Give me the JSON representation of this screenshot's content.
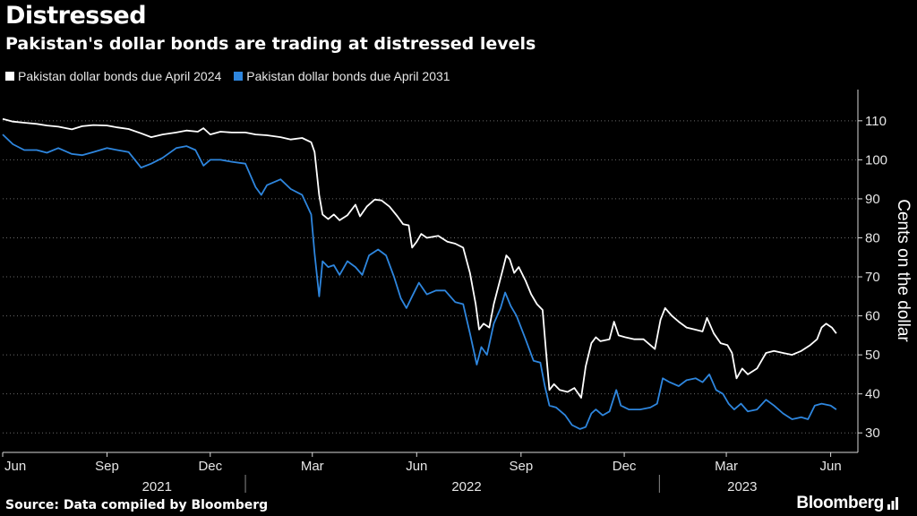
{
  "header": {
    "title": "Distressed",
    "subtitle": "Pakistan's dollar bonds are trading at distressed levels"
  },
  "legend": [
    {
      "label": "Pakistan dollar bonds due April 2024",
      "color": "#ffffff"
    },
    {
      "label": "Pakistan dollar bonds due April 2031",
      "color": "#2e86de"
    }
  ],
  "footer": {
    "source": "Source: Data compiled by Bloomberg",
    "brand": "Bloomberg"
  },
  "chart_data": {
    "type": "line",
    "title": "Distressed",
    "subtitle": "Pakistan's dollar bonds are trading at distressed levels",
    "xlabel": "",
    "ylabel": "Cents on the dollar",
    "ylim": [
      25,
      118
    ],
    "yticks": [
      30,
      40,
      50,
      60,
      70,
      80,
      90,
      100,
      110
    ],
    "grid": "horizontal-dotted",
    "legend_position": "top-left",
    "x_range": [
      "2021-06-01",
      "2023-06-25"
    ],
    "x_month_ticks": [
      {
        "date": "2021-06-01",
        "label": "Jun"
      },
      {
        "date": "2021-09-01",
        "label": "Sep"
      },
      {
        "date": "2021-12-01",
        "label": "Dec"
      },
      {
        "date": "2022-03-01",
        "label": "Mar"
      },
      {
        "date": "2022-06-01",
        "label": "Jun"
      },
      {
        "date": "2022-09-01",
        "label": "Sep"
      },
      {
        "date": "2022-12-01",
        "label": "Dec"
      },
      {
        "date": "2023-03-01",
        "label": "Mar"
      },
      {
        "date": "2023-06-01",
        "label": "Jun"
      }
    ],
    "x_year_labels": [
      {
        "date": "2021-10-15",
        "label": "2021"
      },
      {
        "date": "2022-07-15",
        "label": "2022"
      },
      {
        "date": "2023-03-15",
        "label": "2023"
      }
    ],
    "x_year_dividers": [
      "2022-01-01",
      "2023-01-01"
    ],
    "series": [
      {
        "name": "Pakistan dollar bonds due April 2024",
        "color": "#ffffff",
        "points": [
          [
            "2021-06-01",
            110.5
          ],
          [
            "2021-06-10",
            109.8
          ],
          [
            "2021-06-20",
            109.5
          ],
          [
            "2021-07-01",
            109.2
          ],
          [
            "2021-07-10",
            108.8
          ],
          [
            "2021-07-20",
            108.5
          ],
          [
            "2021-08-01",
            107.8
          ],
          [
            "2021-08-10",
            108.6
          ],
          [
            "2021-08-20",
            108.9
          ],
          [
            "2021-09-01",
            108.8
          ],
          [
            "2021-09-10",
            108.3
          ],
          [
            "2021-09-20",
            107.9
          ],
          [
            "2021-10-01",
            106.8
          ],
          [
            "2021-10-10",
            105.8
          ],
          [
            "2021-10-20",
            106.5
          ],
          [
            "2021-11-01",
            107.0
          ],
          [
            "2021-11-10",
            107.5
          ],
          [
            "2021-11-20",
            107.2
          ],
          [
            "2021-11-25",
            108.1
          ],
          [
            "2021-12-01",
            106.5
          ],
          [
            "2021-12-10",
            107.2
          ],
          [
            "2021-12-20",
            107.0
          ],
          [
            "2022-01-01",
            107.0
          ],
          [
            "2022-01-10",
            106.5
          ],
          [
            "2022-01-20",
            106.3
          ],
          [
            "2022-02-01",
            105.8
          ],
          [
            "2022-02-10",
            105.2
          ],
          [
            "2022-02-20",
            105.6
          ],
          [
            "2022-02-28",
            104.5
          ],
          [
            "2022-03-03",
            102.0
          ],
          [
            "2022-03-07",
            91.0
          ],
          [
            "2022-03-10",
            86.0
          ],
          [
            "2022-03-15",
            84.8
          ],
          [
            "2022-03-20",
            86.0
          ],
          [
            "2022-03-25",
            84.5
          ],
          [
            "2022-04-01",
            85.8
          ],
          [
            "2022-04-08",
            88.5
          ],
          [
            "2022-04-12",
            85.5
          ],
          [
            "2022-04-18",
            88.0
          ],
          [
            "2022-04-25",
            89.8
          ],
          [
            "2022-05-01",
            89.6
          ],
          [
            "2022-05-08",
            88.0
          ],
          [
            "2022-05-15",
            85.5
          ],
          [
            "2022-05-20",
            83.5
          ],
          [
            "2022-05-25",
            83.2
          ],
          [
            "2022-05-28",
            77.5
          ],
          [
            "2022-06-01",
            79.0
          ],
          [
            "2022-06-05",
            81.0
          ],
          [
            "2022-06-10",
            80.0
          ],
          [
            "2022-06-20",
            80.5
          ],
          [
            "2022-06-28",
            79.0
          ],
          [
            "2022-07-05",
            78.5
          ],
          [
            "2022-07-12",
            77.5
          ],
          [
            "2022-07-18",
            71.0
          ],
          [
            "2022-07-23",
            63.0
          ],
          [
            "2022-07-26",
            56.5
          ],
          [
            "2022-07-30",
            58.0
          ],
          [
            "2022-08-04",
            57.0
          ],
          [
            "2022-08-08",
            63.0
          ],
          [
            "2022-08-12",
            67.5
          ],
          [
            "2022-08-16",
            72.0
          ],
          [
            "2022-08-19",
            75.5
          ],
          [
            "2022-08-22",
            74.5
          ],
          [
            "2022-08-26",
            71.0
          ],
          [
            "2022-08-30",
            72.5
          ],
          [
            "2022-09-05",
            69.0
          ],
          [
            "2022-09-10",
            65.5
          ],
          [
            "2022-09-15",
            63.0
          ],
          [
            "2022-09-20",
            61.5
          ],
          [
            "2022-09-23",
            51.0
          ],
          [
            "2022-09-26",
            41.0
          ],
          [
            "2022-09-30",
            42.5
          ],
          [
            "2022-10-05",
            41.0
          ],
          [
            "2022-10-12",
            40.5
          ],
          [
            "2022-10-18",
            41.5
          ],
          [
            "2022-10-24",
            39.0
          ],
          [
            "2022-10-28",
            47.0
          ],
          [
            "2022-11-02",
            53.0
          ],
          [
            "2022-11-06",
            54.5
          ],
          [
            "2022-11-10",
            53.5
          ],
          [
            "2022-11-18",
            54.0
          ],
          [
            "2022-11-22",
            58.5
          ],
          [
            "2022-11-26",
            55.0
          ],
          [
            "2022-12-02",
            54.5
          ],
          [
            "2022-12-10",
            54.0
          ],
          [
            "2022-12-18",
            54.0
          ],
          [
            "2022-12-24",
            52.5
          ],
          [
            "2022-12-28",
            51.5
          ],
          [
            "2023-01-02",
            59.0
          ],
          [
            "2023-01-06",
            62.0
          ],
          [
            "2023-01-12",
            60.0
          ],
          [
            "2023-01-18",
            58.5
          ],
          [
            "2023-01-25",
            57.0
          ],
          [
            "2023-02-01",
            56.5
          ],
          [
            "2023-02-08",
            56.0
          ],
          [
            "2023-02-12",
            59.5
          ],
          [
            "2023-02-18",
            55.5
          ],
          [
            "2023-02-24",
            53.0
          ],
          [
            "2023-03-02",
            52.5
          ],
          [
            "2023-03-06",
            50.5
          ],
          [
            "2023-03-10",
            44.0
          ],
          [
            "2023-03-15",
            46.5
          ],
          [
            "2023-03-20",
            45.0
          ],
          [
            "2023-03-28",
            46.5
          ],
          [
            "2023-04-05",
            50.5
          ],
          [
            "2023-04-12",
            51.0
          ],
          [
            "2023-04-20",
            50.5
          ],
          [
            "2023-04-28",
            50.0
          ],
          [
            "2023-05-06",
            51.0
          ],
          [
            "2023-05-14",
            52.5
          ],
          [
            "2023-05-20",
            54.0
          ],
          [
            "2023-05-24",
            57.0
          ],
          [
            "2023-05-28",
            58.0
          ],
          [
            "2023-06-02",
            57.0
          ],
          [
            "2023-06-06",
            55.5
          ]
        ]
      },
      {
        "name": "Pakistan dollar bonds due April 2031",
        "color": "#2e86de",
        "points": [
          [
            "2021-06-01",
            106.5
          ],
          [
            "2021-06-10",
            104.0
          ],
          [
            "2021-06-20",
            102.5
          ],
          [
            "2021-07-01",
            102.5
          ],
          [
            "2021-07-10",
            101.8
          ],
          [
            "2021-07-20",
            103.0
          ],
          [
            "2021-08-01",
            101.5
          ],
          [
            "2021-08-10",
            101.2
          ],
          [
            "2021-08-20",
            102.0
          ],
          [
            "2021-09-01",
            103.0
          ],
          [
            "2021-09-10",
            102.5
          ],
          [
            "2021-09-20",
            102.0
          ],
          [
            "2021-10-01",
            98.0
          ],
          [
            "2021-10-10",
            99.0
          ],
          [
            "2021-10-20",
            100.5
          ],
          [
            "2021-11-01",
            103.0
          ],
          [
            "2021-11-10",
            103.5
          ],
          [
            "2021-11-18",
            102.5
          ],
          [
            "2021-11-25",
            98.5
          ],
          [
            "2021-12-01",
            100.0
          ],
          [
            "2021-12-10",
            100.0
          ],
          [
            "2021-12-20",
            99.5
          ],
          [
            "2022-01-01",
            99.0
          ],
          [
            "2022-01-10",
            93.0
          ],
          [
            "2022-01-15",
            91.0
          ],
          [
            "2022-01-20",
            93.5
          ],
          [
            "2022-02-01",
            95.0
          ],
          [
            "2022-02-10",
            92.5
          ],
          [
            "2022-02-20",
            91.0
          ],
          [
            "2022-02-28",
            86.0
          ],
          [
            "2022-03-03",
            76.0
          ],
          [
            "2022-03-07",
            65.0
          ],
          [
            "2022-03-10",
            74.0
          ],
          [
            "2022-03-15",
            72.5
          ],
          [
            "2022-03-20",
            73.0
          ],
          [
            "2022-03-25",
            70.5
          ],
          [
            "2022-04-01",
            74.0
          ],
          [
            "2022-04-08",
            72.5
          ],
          [
            "2022-04-14",
            70.5
          ],
          [
            "2022-04-20",
            75.5
          ],
          [
            "2022-04-28",
            77.0
          ],
          [
            "2022-05-05",
            75.5
          ],
          [
            "2022-05-12",
            70.0
          ],
          [
            "2022-05-18",
            64.5
          ],
          [
            "2022-05-23",
            62.0
          ],
          [
            "2022-05-28",
            65.0
          ],
          [
            "2022-06-03",
            68.5
          ],
          [
            "2022-06-10",
            65.5
          ],
          [
            "2022-06-18",
            66.5
          ],
          [
            "2022-06-26",
            66.5
          ],
          [
            "2022-07-05",
            63.5
          ],
          [
            "2022-07-12",
            63.0
          ],
          [
            "2022-07-18",
            55.5
          ],
          [
            "2022-07-24",
            47.5
          ],
          [
            "2022-07-28",
            52.0
          ],
          [
            "2022-08-02",
            50.0
          ],
          [
            "2022-08-08",
            58.0
          ],
          [
            "2022-08-14",
            62.0
          ],
          [
            "2022-08-18",
            66.0
          ],
          [
            "2022-08-23",
            62.5
          ],
          [
            "2022-08-28",
            60.0
          ],
          [
            "2022-09-05",
            54.0
          ],
          [
            "2022-09-12",
            48.5
          ],
          [
            "2022-09-18",
            48.0
          ],
          [
            "2022-09-22",
            42.0
          ],
          [
            "2022-09-26",
            37.0
          ],
          [
            "2022-10-02",
            36.5
          ],
          [
            "2022-10-10",
            34.5
          ],
          [
            "2022-10-16",
            32.0
          ],
          [
            "2022-10-23",
            31.0
          ],
          [
            "2022-10-28",
            31.5
          ],
          [
            "2022-11-02",
            35.0
          ],
          [
            "2022-11-06",
            36.0
          ],
          [
            "2022-11-12",
            34.5
          ],
          [
            "2022-11-18",
            35.5
          ],
          [
            "2022-11-24",
            41.0
          ],
          [
            "2022-11-28",
            37.0
          ],
          [
            "2022-12-05",
            36.0
          ],
          [
            "2022-12-15",
            36.0
          ],
          [
            "2022-12-24",
            36.5
          ],
          [
            "2022-12-30",
            37.5
          ],
          [
            "2023-01-04",
            44.0
          ],
          [
            "2023-01-10",
            43.0
          ],
          [
            "2023-01-18",
            42.0
          ],
          [
            "2023-01-25",
            43.5
          ],
          [
            "2023-02-02",
            44.0
          ],
          [
            "2023-02-08",
            43.0
          ],
          [
            "2023-02-14",
            45.0
          ],
          [
            "2023-02-20",
            41.0
          ],
          [
            "2023-02-26",
            40.0
          ],
          [
            "2023-03-03",
            37.5
          ],
          [
            "2023-03-08",
            36.0
          ],
          [
            "2023-03-14",
            37.5
          ],
          [
            "2023-03-20",
            35.5
          ],
          [
            "2023-03-28",
            36.0
          ],
          [
            "2023-04-05",
            38.5
          ],
          [
            "2023-04-12",
            37.0
          ],
          [
            "2023-04-20",
            35.0
          ],
          [
            "2023-04-28",
            33.5
          ],
          [
            "2023-05-06",
            34.0
          ],
          [
            "2023-05-12",
            33.5
          ],
          [
            "2023-05-18",
            37.0
          ],
          [
            "2023-05-24",
            37.5
          ],
          [
            "2023-06-01",
            37.0
          ],
          [
            "2023-06-06",
            36.0
          ]
        ]
      }
    ]
  }
}
